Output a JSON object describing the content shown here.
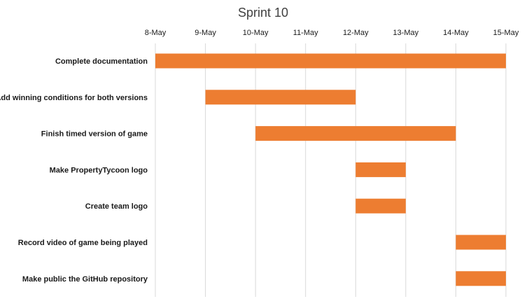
{
  "chart_data": {
    "type": "bar",
    "orientation": "horizontal",
    "title": "Sprint 10",
    "xlabel": "",
    "ylabel": "",
    "x_ticks": [
      "8-May",
      "9-May",
      "10-May",
      "11-May",
      "12-May",
      "13-May",
      "14-May",
      "15-May"
    ],
    "xlim": [
      "8-May",
      "15-May"
    ],
    "x_axis_position": "top",
    "grid": "vertical",
    "legend": "none",
    "bar_color": "#ED7D31",
    "tasks": [
      {
        "label": "Complete documentation",
        "start": "8-May",
        "end": "15-May"
      },
      {
        "label": "Add winning conditions for both versions",
        "start": "9-May",
        "end": "12-May"
      },
      {
        "label": "Finish timed version of game",
        "start": "10-May",
        "end": "14-May"
      },
      {
        "label": "Make PropertyTycoon logo",
        "start": "12-May",
        "end": "13-May"
      },
      {
        "label": "Create team logo",
        "start": "12-May",
        "end": "13-May"
      },
      {
        "label": "Record video of game being played",
        "start": "14-May",
        "end": "15-May"
      },
      {
        "label": "Make public the GitHub repository",
        "start": "14-May",
        "end": "15-May"
      }
    ]
  }
}
